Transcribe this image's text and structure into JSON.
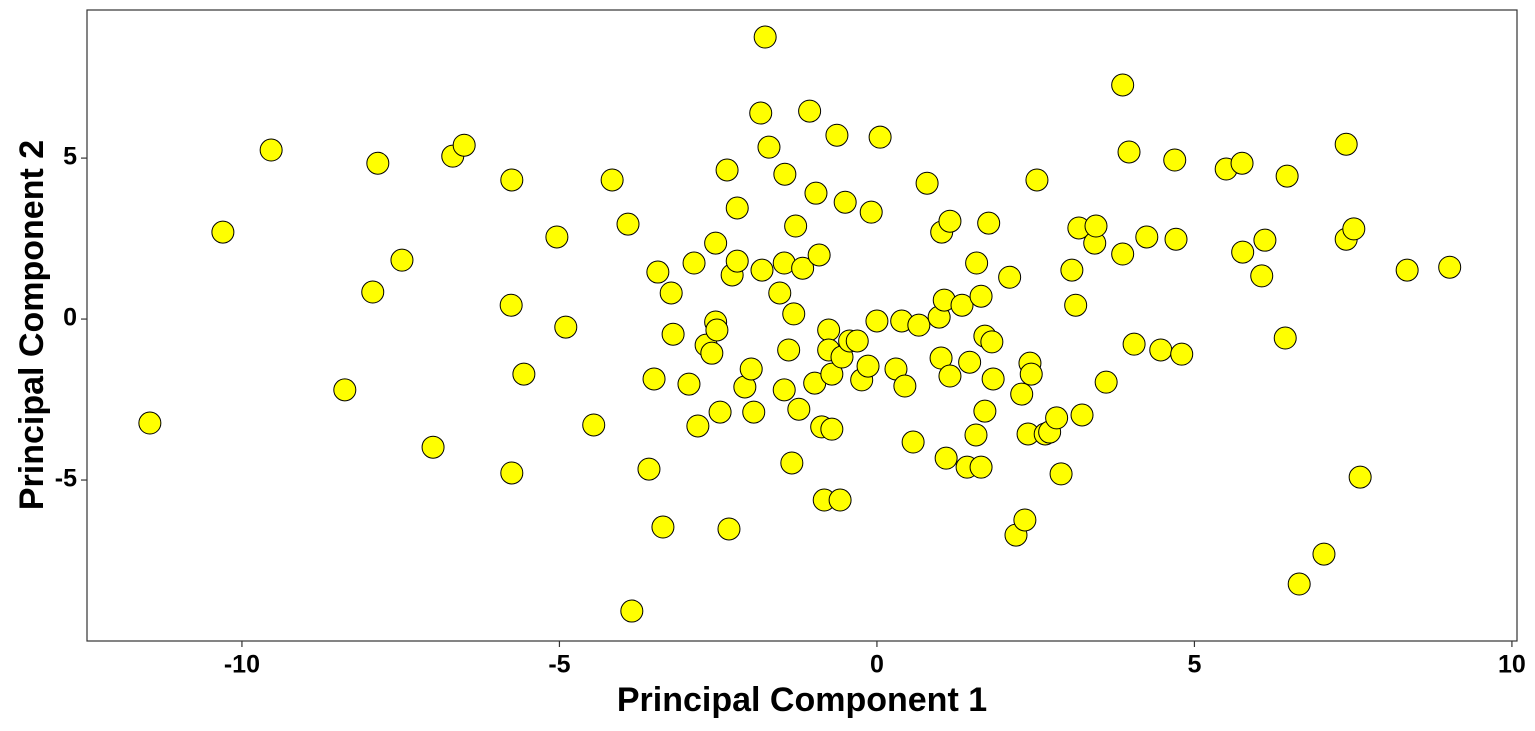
{
  "chart_data": {
    "type": "scatter",
    "x_label": "Principal Component 1",
    "y_label": "Principal Component 2",
    "color": "#ffff00",
    "edge_color": "#000000",
    "xlim": [
      -12.44,
      10.08
    ],
    "ylim": [
      -10.0,
      9.6
    ],
    "xticks": [
      -10,
      -5,
      0,
      5,
      10
    ],
    "yticks": [
      -5,
      0,
      5
    ],
    "grid": false,
    "x": [
      -1.76,
      3.87,
      -9.54,
      -10.3,
      -11.45,
      -7.86,
      -7.48,
      -7.94,
      -8.38,
      -6.99,
      -6.68,
      -6.5,
      -5.75,
      -5.76,
      -5.56,
      -5.75,
      -5.04,
      -4.9,
      -4.46,
      -4.17,
      -3.92,
      -3.86,
      -3.45,
      -3.24,
      -3.21,
      -3.51,
      -3.59,
      -3.37,
      -2.88,
      -2.96,
      -2.82,
      -2.69,
      -2.6,
      -2.54,
      -2.54,
      -2.52,
      -2.47,
      -2.36,
      -2.33,
      -2.28,
      -2.2,
      -2.2,
      -2.08,
      -1.98,
      -1.94,
      -1.83,
      -1.81,
      -1.7,
      -1.53,
      -1.46,
      -1.45,
      -1.46,
      -1.39,
      -1.31,
      -1.28,
      -1.34,
      -1.23,
      -1.17,
      -1.06,
      -0.96,
      -0.98,
      -0.91,
      -0.87,
      -0.83,
      -0.76,
      -0.76,
      -0.71,
      -0.71,
      -0.63,
      -0.58,
      -0.55,
      -0.5,
      -0.43,
      -0.31,
      -0.24,
      -0.14,
      -0.09,
      0.0,
      0.05,
      0.3,
      0.39,
      0.44,
      0.57,
      0.66,
      0.79,
      0.98,
      1.01,
      1.02,
      1.09,
      1.06,
      1.15,
      1.15,
      1.34,
      1.42,
      1.46,
      1.56,
      1.57,
      1.64,
      1.64,
      1.7,
      1.7,
      1.76,
      1.81,
      1.83,
      2.09,
      2.19,
      2.28,
      2.33,
      2.38,
      2.41,
      2.43,
      2.52,
      2.65,
      2.72,
      2.83,
      2.9,
      3.07,
      3.13,
      3.18,
      3.23,
      3.43,
      3.45,
      3.61,
      3.87,
      3.97,
      4.05,
      4.25,
      4.47,
      4.69,
      4.71,
      4.8,
      5.5,
      5.75,
      5.76,
      6.06,
      6.11,
      6.43,
      6.46,
      6.65,
      7.04,
      7.39,
      7.39,
      7.51,
      7.61,
      8.35,
      9.02
    ],
    "values": [
      8.76,
      7.27,
      5.25,
      2.7,
      -3.23,
      4.84,
      1.83,
      0.84,
      -2.2,
      -3.98,
      5.06,
      5.4,
      4.32,
      0.43,
      -1.71,
      -4.78,
      2.55,
      -0.25,
      -3.29,
      4.32,
      2.95,
      -9.07,
      1.46,
      0.81,
      -0.47,
      -1.86,
      -4.66,
      -6.46,
      1.74,
      -2.02,
      -3.32,
      -0.81,
      -1.06,
      2.36,
      -0.09,
      -0.34,
      -2.89,
      4.63,
      -6.52,
      1.37,
      1.8,
      3.45,
      -2.11,
      -1.55,
      -2.89,
      6.4,
      1.52,
      5.34,
      0.81,
      1.74,
      4.5,
      -2.2,
      -0.96,
      0.16,
      2.89,
      -4.47,
      -2.8,
      1.58,
      6.46,
      3.91,
      -1.99,
      1.99,
      -3.35,
      -5.62,
      -0.34,
      -0.96,
      -3.42,
      -1.71,
      5.71,
      -5.62,
      -1.18,
      3.63,
      -0.68,
      -0.68,
      -1.89,
      -1.46,
      3.32,
      -0.06,
      5.65,
      -1.55,
      -0.06,
      -2.08,
      -3.82,
      -0.19,
      4.22,
      0.06,
      -1.21,
      2.7,
      -4.32,
      0.59,
      3.04,
      -1.77,
      0.43,
      -4.6,
      -1.34,
      -3.6,
      1.74,
      0.71,
      -4.6,
      -2.86,
      -0.53,
      2.98,
      -0.71,
      -1.86,
      1.3,
      -6.71,
      -2.33,
      -6.24,
      -3.57,
      -1.37,
      -1.71,
      4.32,
      -3.57,
      -3.51,
      -3.07,
      -4.81,
      1.52,
      0.43,
      2.83,
      -2.98,
      2.36,
      2.89,
      -1.96,
      2.02,
      5.19,
      -0.78,
      2.55,
      -0.96,
      4.94,
      2.48,
      -1.09,
      4.66,
      4.84,
      2.08,
      1.34,
      2.45,
      -0.59,
      4.44,
      -8.23,
      -7.3,
      5.43,
      2.48,
      2.8,
      -4.91,
      1.52,
      1.61
    ]
  }
}
